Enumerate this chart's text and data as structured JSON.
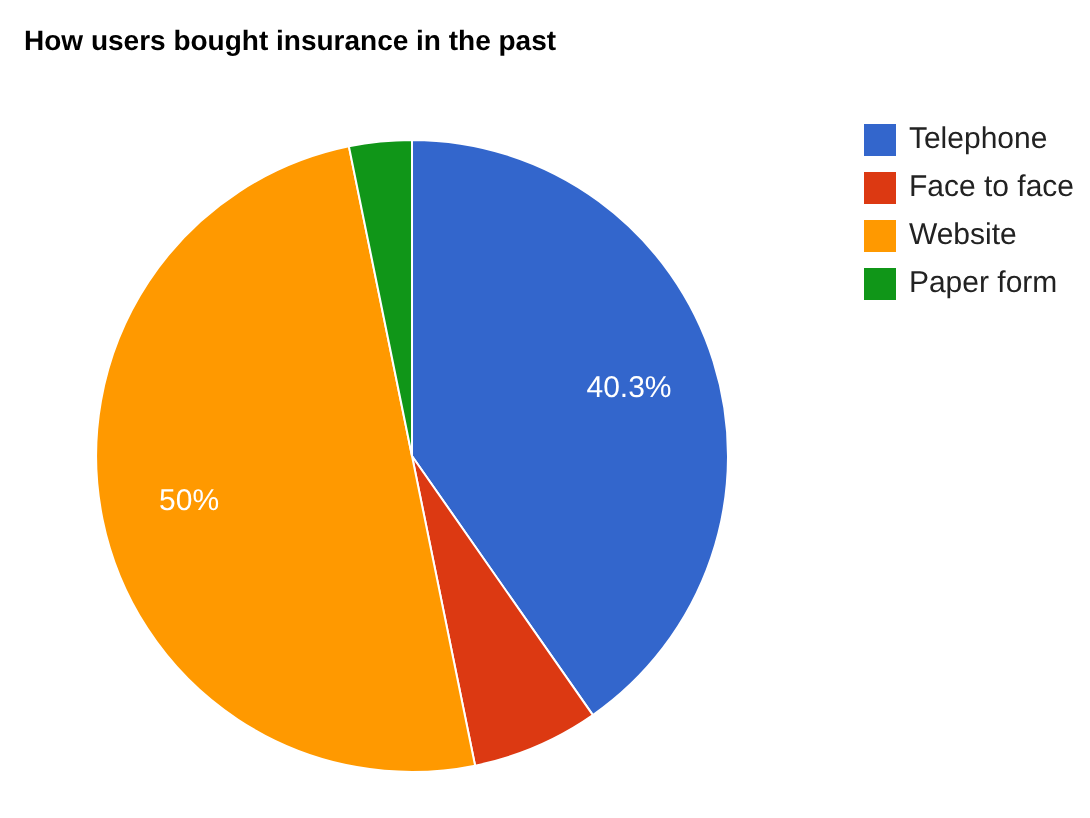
{
  "chart_data": {
    "type": "pie",
    "title": "How users bought insurance in the past",
    "categories": [
      "Telephone",
      "Face to face",
      "Website",
      "Paper form"
    ],
    "values": [
      40.3,
      6.5,
      50,
      3.2
    ],
    "colors": [
      "#3366cc",
      "#dc3912",
      "#ff9900",
      "#109618"
    ],
    "value_labels": [
      "40.3%",
      null,
      "50%",
      null
    ],
    "legend": "top right"
  }
}
